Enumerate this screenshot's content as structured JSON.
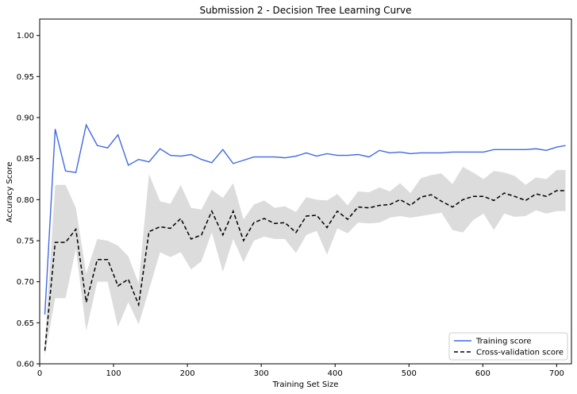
{
  "chart_data": {
    "type": "line",
    "title": "Submission 2 - Decision Tree Learning Curve",
    "xlabel": "Training Set Size",
    "ylabel": "Accuracy Score",
    "xlim": [
      0,
      720
    ],
    "ylim": [
      0.6,
      1.02
    ],
    "xticks": [
      0,
      100,
      200,
      300,
      400,
      500,
      600,
      700
    ],
    "yticks": [
      0.6,
      0.65,
      0.7,
      0.75,
      0.8,
      0.85,
      0.9,
      0.95,
      1.0
    ],
    "xtick_labels": [
      "0",
      "100",
      "200",
      "300",
      "400",
      "500",
      "600",
      "700"
    ],
    "ytick_labels": [
      "0.60",
      "0.65",
      "0.70",
      "0.75",
      "0.80",
      "0.85",
      "0.90",
      "0.95",
      "1.00"
    ],
    "grid": false,
    "legend_position": "lower-right",
    "x": [
      7,
      21,
      35,
      49,
      63,
      78,
      92,
      106,
      120,
      134,
      148,
      163,
      177,
      191,
      205,
      219,
      233,
      248,
      262,
      276,
      290,
      304,
      318,
      332,
      347,
      361,
      375,
      389,
      403,
      417,
      431,
      446,
      460,
      474,
      488,
      502,
      516,
      530,
      544,
      559,
      573,
      587,
      601,
      615,
      629,
      643,
      658,
      672,
      686,
      700,
      712
    ],
    "series": [
      {
        "name": "Training score",
        "color": "#4169e1",
        "style": "solid",
        "values": [
          0.66,
          0.886,
          0.835,
          0.833,
          0.891,
          0.866,
          0.863,
          0.879,
          0.842,
          0.849,
          0.846,
          0.862,
          0.854,
          0.853,
          0.855,
          0.849,
          0.845,
          0.861,
          0.844,
          0.848,
          0.852,
          0.852,
          0.852,
          0.851,
          0.853,
          0.857,
          0.853,
          0.856,
          0.854,
          0.854,
          0.855,
          0.852,
          0.86,
          0.857,
          0.858,
          0.856,
          0.857,
          0.857,
          0.857,
          0.858,
          0.858,
          0.858,
          0.858,
          0.861,
          0.861,
          0.861,
          0.861,
          0.862,
          0.86,
          0.864,
          0.866
        ]
      },
      {
        "name": "Cross-validation score",
        "color": "#000000",
        "style": "dashed",
        "values": [
          0.616,
          0.748,
          0.748,
          0.764,
          0.675,
          0.727,
          0.727,
          0.695,
          0.703,
          0.672,
          0.761,
          0.767,
          0.765,
          0.777,
          0.752,
          0.757,
          0.786,
          0.757,
          0.786,
          0.75,
          0.772,
          0.777,
          0.771,
          0.772,
          0.76,
          0.78,
          0.781,
          0.766,
          0.786,
          0.776,
          0.791,
          0.79,
          0.793,
          0.794,
          0.8,
          0.793,
          0.803,
          0.806,
          0.798,
          0.791,
          0.8,
          0.804,
          0.804,
          0.799,
          0.808,
          0.804,
          0.799,
          0.807,
          0.804,
          0.811,
          0.811
        ],
        "band_lower": [
          0.61,
          0.68,
          0.68,
          0.74,
          0.64,
          0.7,
          0.7,
          0.645,
          0.675,
          0.648,
          0.69,
          0.736,
          0.73,
          0.736,
          0.715,
          0.725,
          0.76,
          0.712,
          0.752,
          0.724,
          0.75,
          0.755,
          0.752,
          0.752,
          0.735,
          0.757,
          0.762,
          0.733,
          0.765,
          0.759,
          0.772,
          0.771,
          0.772,
          0.778,
          0.78,
          0.778,
          0.78,
          0.782,
          0.784,
          0.763,
          0.76,
          0.775,
          0.783,
          0.763,
          0.783,
          0.779,
          0.78,
          0.787,
          0.783,
          0.786,
          0.786
        ],
        "band_upper": [
          0.625,
          0.818,
          0.818,
          0.79,
          0.71,
          0.752,
          0.75,
          0.744,
          0.731,
          0.698,
          0.831,
          0.798,
          0.795,
          0.818,
          0.79,
          0.788,
          0.812,
          0.802,
          0.82,
          0.776,
          0.794,
          0.799,
          0.79,
          0.792,
          0.785,
          0.803,
          0.8,
          0.799,
          0.807,
          0.793,
          0.81,
          0.809,
          0.815,
          0.81,
          0.82,
          0.808,
          0.826,
          0.83,
          0.832,
          0.819,
          0.84,
          0.833,
          0.825,
          0.835,
          0.833,
          0.829,
          0.818,
          0.827,
          0.825,
          0.836,
          0.836
        ]
      }
    ]
  }
}
